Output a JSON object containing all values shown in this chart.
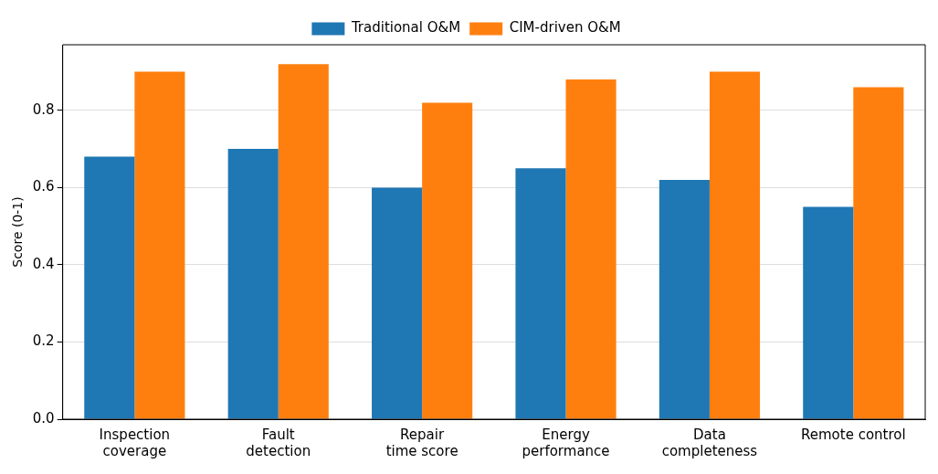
{
  "chart_data": {
    "type": "bar",
    "ylabel": "Score (0-1)",
    "categories": [
      "Inspection coverage",
      "Fault detection",
      "Repair time score",
      "Energy performance",
      "Data completeness",
      "Remote control"
    ],
    "series": [
      {
        "name": "Traditional O&M",
        "color": "#1f77b4",
        "values": [
          0.68,
          0.7,
          0.6,
          0.65,
          0.62,
          0.55
        ]
      },
      {
        "name": "CIM-driven O&M",
        "color": "#ff7f0e",
        "values": [
          0.9,
          0.92,
          0.82,
          0.88,
          0.9,
          0.86
        ]
      }
    ],
    "ylim": [
      0,
      0.97
    ],
    "yticks": [
      {
        "value": 0,
        "label": "0.0"
      },
      {
        "value": 0.2,
        "label": "0.2"
      },
      {
        "value": 0.4,
        "label": "0.4"
      },
      {
        "value": 0.6,
        "label": "0.6"
      },
      {
        "value": 0.8,
        "label": "0.8"
      }
    ],
    "grid": "y",
    "legend": "top"
  }
}
